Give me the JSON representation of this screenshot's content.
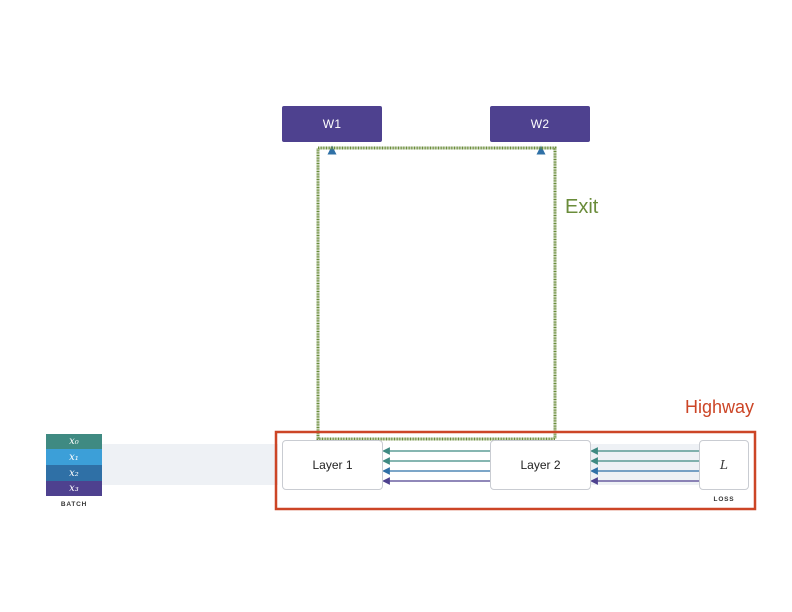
{
  "weights": [
    {
      "label": "W1"
    },
    {
      "label": "W2"
    }
  ],
  "layers": [
    {
      "label": "Layer 1"
    },
    {
      "label": "Layer 2"
    }
  ],
  "loss": {
    "symbol": "L",
    "caption": "LOSS"
  },
  "batch": {
    "caption": "BATCH",
    "items": [
      {
        "label": "x₀",
        "color": "#3f8a82"
      },
      {
        "label": "x₁",
        "color": "#3c9fd8"
      },
      {
        "label": "x₂",
        "color": "#2f70a6"
      },
      {
        "label": "x₃",
        "color": "#4e418f"
      }
    ]
  },
  "regions": {
    "exit": {
      "label": "Exit",
      "color": "#6a8c3a"
    },
    "highway": {
      "label": "Highway",
      "color": "#cc4526"
    }
  },
  "colors": {
    "weight_fill": "#4e418f",
    "arrow_teal": "#3f8a82",
    "arrow_blue": "#2f70a6",
    "arrow_purple": "#4e418f",
    "band": "#eef1f5"
  }
}
